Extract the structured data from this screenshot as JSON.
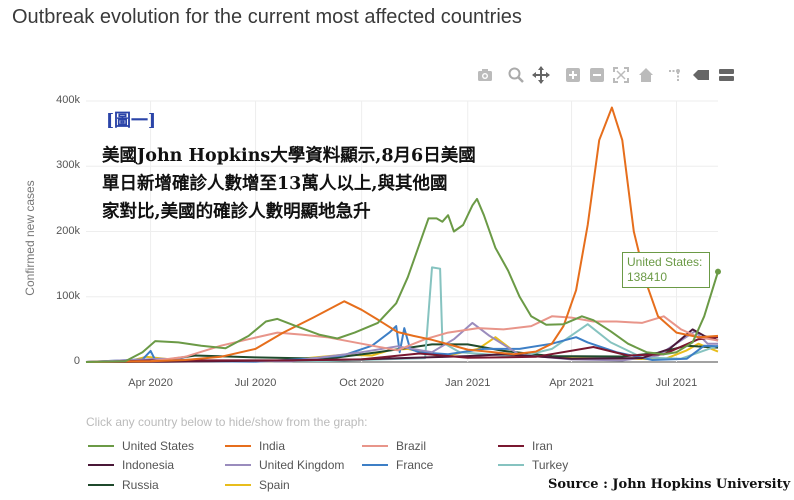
{
  "page": {
    "title": "Outbreak evolution for the current most affected countries",
    "hint": "Click any country below to hide/show from the graph:",
    "caption_tag": "[圖一]",
    "caption_lines": [
      "美國John Hopkins大學資料顯示,8月6日美國",
      "單日新增確診人數增至13萬人以上,與其他國",
      "家對比,美國的確診人數明顯地急升"
    ],
    "source": "Source : John Hopkins University",
    "tooltip": {
      "label": "United States:",
      "value": "138410"
    }
  },
  "modebar": {
    "icons": [
      "camera-icon",
      "zoom-icon",
      "pan-icon",
      "zoom-in-icon",
      "zoom-out-icon",
      "autoscale-icon",
      "home-icon",
      "spike-lines-icon",
      "hover-closest-icon",
      "hover-compare-icon"
    ]
  },
  "colors": {
    "background": "#ffffff",
    "grid": "#eeeeee",
    "United States": "#6b9a46",
    "India": "#e66e1c",
    "Brazil": "#e8958a",
    "Iran": "#7a1830",
    "Indonesia": "#4a1838",
    "United Kingdom": "#9a8cbd",
    "France": "#3d7fc6",
    "Turkey": "#86c3c0",
    "Russia": "#1f4a2c",
    "Spain": "#e8bd1c"
  },
  "chart_data": {
    "type": "line",
    "title": "Outbreak evolution for the current most affected countries",
    "xlabel": "",
    "ylabel": "Confirmed new cases",
    "xlim": [
      "2020-02-05",
      "2021-08-06"
    ],
    "ylim": [
      0,
      400000
    ],
    "y_ticks": [
      0,
      100000,
      200000,
      300000,
      400000
    ],
    "y_tick_labels": [
      "0",
      "100k",
      "200k",
      "300k",
      "400k"
    ],
    "x_ticks": [
      "2020-04-01",
      "2020-07-01",
      "2020-10-01",
      "2021-01-01",
      "2021-04-01",
      "2021-07-01"
    ],
    "x_tick_labels": [
      "Apr 2020",
      "Jul 2020",
      "Oct 2020",
      "Jan 2021",
      "Apr 2021",
      "Jul 2021"
    ],
    "grid": true,
    "legend_position": "bottom",
    "annotations": [
      {
        "series": "United States",
        "x": "2021-08-06",
        "y": 138410,
        "text": "United States: 138410"
      }
    ],
    "series": [
      {
        "name": "United States",
        "points": [
          [
            "2020-02-05",
            0
          ],
          [
            "2020-03-10",
            1000
          ],
          [
            "2020-03-25",
            15000
          ],
          [
            "2020-04-05",
            32000
          ],
          [
            "2020-04-25",
            30000
          ],
          [
            "2020-05-15",
            25000
          ],
          [
            "2020-06-05",
            21000
          ],
          [
            "2020-06-25",
            40000
          ],
          [
            "2020-07-10",
            62000
          ],
          [
            "2020-07-20",
            66000
          ],
          [
            "2020-08-05",
            55000
          ],
          [
            "2020-08-25",
            42000
          ],
          [
            "2020-09-10",
            36000
          ],
          [
            "2020-09-25",
            45000
          ],
          [
            "2020-10-15",
            60000
          ],
          [
            "2020-10-31",
            90000
          ],
          [
            "2020-11-10",
            130000
          ],
          [
            "2020-11-20",
            180000
          ],
          [
            "2020-11-28",
            220000
          ],
          [
            "2020-12-05",
            220000
          ],
          [
            "2020-12-10",
            215000
          ],
          [
            "2020-12-15",
            225000
          ],
          [
            "2020-12-20",
            200000
          ],
          [
            "2020-12-28",
            210000
          ],
          [
            "2021-01-05",
            240000
          ],
          [
            "2021-01-09",
            250000
          ],
          [
            "2021-01-15",
            225000
          ],
          [
            "2021-01-25",
            175000
          ],
          [
            "2021-02-05",
            140000
          ],
          [
            "2021-02-15",
            100000
          ],
          [
            "2021-02-25",
            70000
          ],
          [
            "2021-03-10",
            57000
          ],
          [
            "2021-03-25",
            58000
          ],
          [
            "2021-04-10",
            70000
          ],
          [
            "2021-04-20",
            64000
          ],
          [
            "2021-05-05",
            47000
          ],
          [
            "2021-05-20",
            28000
          ],
          [
            "2021-06-05",
            15000
          ],
          [
            "2021-06-20",
            12000
          ],
          [
            "2021-07-01",
            15000
          ],
          [
            "2021-07-15",
            30000
          ],
          [
            "2021-07-25",
            70000
          ],
          [
            "2021-08-06",
            138410
          ]
        ]
      },
      {
        "name": "India",
        "points": [
          [
            "2020-02-05",
            0
          ],
          [
            "2020-04-01",
            1000
          ],
          [
            "2020-05-01",
            3000
          ],
          [
            "2020-06-01",
            8000
          ],
          [
            "2020-07-01",
            20000
          ],
          [
            "2020-07-25",
            45000
          ],
          [
            "2020-08-20",
            68000
          ],
          [
            "2020-09-16",
            93000
          ],
          [
            "2020-10-01",
            80000
          ],
          [
            "2020-10-15",
            65000
          ],
          [
            "2020-11-01",
            46000
          ],
          [
            "2020-11-15",
            40000
          ],
          [
            "2020-12-01",
            34000
          ],
          [
            "2021-01-01",
            19000
          ],
          [
            "2021-02-10",
            12000
          ],
          [
            "2021-03-01",
            16000
          ],
          [
            "2021-03-15",
            28000
          ],
          [
            "2021-03-25",
            55000
          ],
          [
            "2021-04-05",
            110000
          ],
          [
            "2021-04-15",
            210000
          ],
          [
            "2021-04-25",
            340000
          ],
          [
            "2021-05-06",
            390000
          ],
          [
            "2021-05-15",
            340000
          ],
          [
            "2021-05-25",
            200000
          ],
          [
            "2021-06-05",
            120000
          ],
          [
            "2021-06-15",
            70000
          ],
          [
            "2021-07-01",
            45000
          ],
          [
            "2021-07-20",
            38000
          ],
          [
            "2021-08-06",
            40000
          ]
        ]
      },
      {
        "name": "Brazil",
        "points": [
          [
            "2020-02-05",
            0
          ],
          [
            "2020-04-01",
            1000
          ],
          [
            "2020-05-01",
            8000
          ],
          [
            "2020-06-01",
            25000
          ],
          [
            "2020-06-25",
            35000
          ],
          [
            "2020-07-20",
            45000
          ],
          [
            "2020-08-10",
            42000
          ],
          [
            "2020-09-01",
            38000
          ],
          [
            "2020-10-01",
            28000
          ],
          [
            "2020-11-01",
            18000
          ],
          [
            "2020-11-25",
            35000
          ],
          [
            "2020-12-15",
            45000
          ],
          [
            "2021-01-10",
            52000
          ],
          [
            "2021-02-01",
            50000
          ],
          [
            "2021-02-25",
            55000
          ],
          [
            "2021-03-15",
            70000
          ],
          [
            "2021-04-01",
            68000
          ],
          [
            "2021-04-20",
            62000
          ],
          [
            "2021-05-10",
            62000
          ],
          [
            "2021-06-01",
            60000
          ],
          [
            "2021-06-20",
            70000
          ],
          [
            "2021-07-05",
            50000
          ],
          [
            "2021-07-20",
            38000
          ],
          [
            "2021-08-06",
            33000
          ]
        ]
      },
      {
        "name": "Iran",
        "points": [
          [
            "2020-02-05",
            0
          ],
          [
            "2020-03-10",
            1000
          ],
          [
            "2020-04-01",
            2500
          ],
          [
            "2020-06-01",
            2500
          ],
          [
            "2020-08-01",
            2500
          ],
          [
            "2020-10-01",
            4000
          ],
          [
            "2020-11-20",
            13000
          ],
          [
            "2021-01-01",
            6500
          ],
          [
            "2021-03-01",
            8000
          ],
          [
            "2021-04-20",
            23000
          ],
          [
            "2021-05-20",
            10000
          ],
          [
            "2021-06-20",
            12000
          ],
          [
            "2021-07-20",
            35000
          ],
          [
            "2021-08-06",
            38000
          ]
        ]
      },
      {
        "name": "Indonesia",
        "points": [
          [
            "2020-02-05",
            0
          ],
          [
            "2020-04-15",
            500
          ],
          [
            "2020-07-01",
            2000
          ],
          [
            "2020-10-01",
            4000
          ],
          [
            "2021-01-01",
            9000
          ],
          [
            "2021-02-01",
            12000
          ],
          [
            "2021-04-01",
            5000
          ],
          [
            "2021-06-01",
            6000
          ],
          [
            "2021-06-25",
            20000
          ],
          [
            "2021-07-15",
            50000
          ],
          [
            "2021-07-25",
            40000
          ],
          [
            "2021-08-06",
            33000
          ]
        ]
      },
      {
        "name": "United Kingdom",
        "points": [
          [
            "2020-02-05",
            0
          ],
          [
            "2020-04-10",
            5000
          ],
          [
            "2020-06-01",
            1500
          ],
          [
            "2020-08-01",
            1000
          ],
          [
            "2020-10-01",
            15000
          ],
          [
            "2020-11-01",
            24000
          ],
          [
            "2020-12-01",
            15000
          ],
          [
            "2020-12-20",
            35000
          ],
          [
            "2021-01-05",
            60000
          ],
          [
            "2021-01-20",
            40000
          ],
          [
            "2021-02-15",
            11000
          ],
          [
            "2021-04-01",
            4000
          ],
          [
            "2021-05-15",
            2500
          ],
          [
            "2021-06-15",
            10000
          ],
          [
            "2021-07-17",
            47000
          ],
          [
            "2021-07-28",
            28000
          ],
          [
            "2021-08-06",
            28000
          ]
        ]
      },
      {
        "name": "France",
        "points": [
          [
            "2020-02-05",
            0
          ],
          [
            "2020-03-25",
            4000
          ],
          [
            "2020-04-01",
            17000
          ],
          [
            "2020-04-05",
            3000
          ],
          [
            "2020-05-01",
            1500
          ],
          [
            "2020-07-01",
            500
          ],
          [
            "2020-08-15",
            5000
          ],
          [
            "2020-09-15",
            10000
          ],
          [
            "2020-10-10",
            25000
          ],
          [
            "2020-10-25",
            45000
          ],
          [
            "2020-10-31",
            55000
          ],
          [
            "2020-11-03",
            15000
          ],
          [
            "2020-11-07",
            52000
          ],
          [
            "2020-11-12",
            20000
          ],
          [
            "2020-11-20",
            15000
          ],
          [
            "2020-12-15",
            12000
          ],
          [
            "2021-01-15",
            20000
          ],
          [
            "2021-02-15",
            20000
          ],
          [
            "2021-03-15",
            28000
          ],
          [
            "2021-04-05",
            38000
          ],
          [
            "2021-04-15",
            30000
          ],
          [
            "2021-05-10",
            15000
          ],
          [
            "2021-06-10",
            3000
          ],
          [
            "2021-07-10",
            5000
          ],
          [
            "2021-07-25",
            25000
          ],
          [
            "2021-08-06",
            24000
          ]
        ]
      },
      {
        "name": "Turkey",
        "points": [
          [
            "2020-02-05",
            0
          ],
          [
            "2020-04-10",
            4000
          ],
          [
            "2020-06-01",
            1000
          ],
          [
            "2020-09-01",
            1500
          ],
          [
            "2020-11-25",
            6000
          ],
          [
            "2020-12-01",
            145000
          ],
          [
            "2020-12-08",
            143000
          ],
          [
            "2020-12-10",
            30000
          ],
          [
            "2020-12-25",
            15000
          ],
          [
            "2021-02-15",
            8000
          ],
          [
            "2021-03-15",
            20000
          ],
          [
            "2021-04-15",
            58000
          ],
          [
            "2021-05-05",
            30000
          ],
          [
            "2021-06-01",
            7000
          ],
          [
            "2021-07-05",
            5000
          ],
          [
            "2021-08-06",
            25000
          ]
        ]
      },
      {
        "name": "Russia",
        "points": [
          [
            "2020-02-05",
            0
          ],
          [
            "2020-04-01",
            500
          ],
          [
            "2020-05-10",
            10000
          ],
          [
            "2020-07-01",
            7000
          ],
          [
            "2020-09-01",
            5000
          ],
          [
            "2020-10-15",
            15000
          ],
          [
            "2020-12-01",
            27000
          ],
          [
            "2021-01-01",
            27000
          ],
          [
            "2021-02-01",
            17000
          ],
          [
            "2021-03-15",
            9000
          ],
          [
            "2021-05-15",
            8500
          ],
          [
            "2021-06-15",
            14000
          ],
          [
            "2021-07-10",
            25000
          ],
          [
            "2021-08-06",
            22000
          ]
        ]
      },
      {
        "name": "Spain",
        "points": [
          [
            "2020-02-05",
            0
          ],
          [
            "2020-03-15",
            2000
          ],
          [
            "2020-03-28",
            8000
          ],
          [
            "2020-05-01",
            1500
          ],
          [
            "2020-07-15",
            1000
          ],
          [
            "2020-08-15",
            6000
          ],
          [
            "2020-09-15",
            11000
          ],
          [
            "2020-10-10",
            10000
          ],
          [
            "2020-10-25",
            18000
          ],
          [
            "2020-11-10",
            20000
          ],
          [
            "2020-12-10",
            8000
          ],
          [
            "2021-01-10",
            20000
          ],
          [
            "2021-01-25",
            38000
          ],
          [
            "2021-02-15",
            10000
          ],
          [
            "2021-04-01",
            6000
          ],
          [
            "2021-05-15",
            5000
          ],
          [
            "2021-06-20",
            4000
          ],
          [
            "2021-07-10",
            18000
          ],
          [
            "2021-07-20",
            28000
          ],
          [
            "2021-08-06",
            16000
          ]
        ]
      }
    ]
  }
}
